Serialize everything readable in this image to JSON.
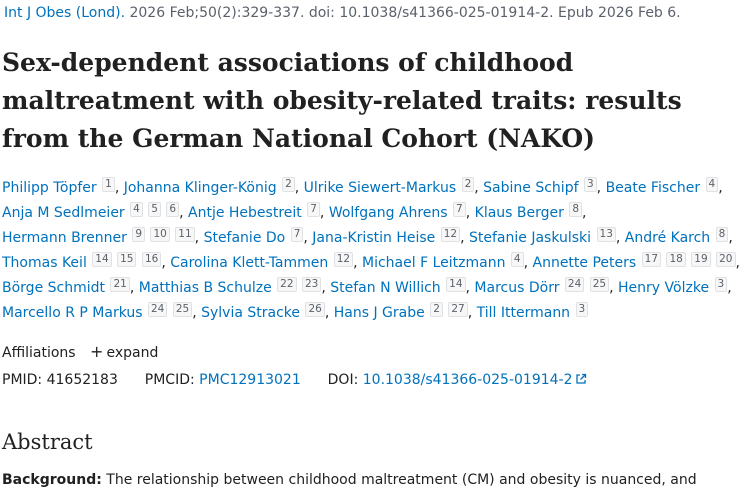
{
  "citation": {
    "journal": "Int J Obes (Lond).",
    "details": " 2026 Feb;50(2):329-337. doi: 10.1038/s41366-025-01914-2. Epub 2026 Feb 6."
  },
  "title": "Sex-dependent associations of childhood maltreatment with obesity-related traits: results from the German National Cohort (NAKO)",
  "authors": [
    {
      "name": "Philipp Töpfer",
      "affs": [
        "1"
      ]
    },
    {
      "name": "Johanna Klinger-König",
      "affs": [
        "2"
      ]
    },
    {
      "name": "Ulrike Siewert-Markus",
      "affs": [
        "2"
      ]
    },
    {
      "name": "Sabine Schipf",
      "affs": [
        "3"
      ]
    },
    {
      "name": "Beate Fischer",
      "affs": [
        "4"
      ]
    },
    {
      "name": "Anja M Sedlmeier",
      "affs": [
        "4",
        "5",
        "6"
      ]
    },
    {
      "name": "Antje Hebestreit",
      "affs": [
        "7"
      ]
    },
    {
      "name": "Wolfgang Ahrens",
      "affs": [
        "7"
      ]
    },
    {
      "name": "Klaus Berger",
      "affs": [
        "8"
      ]
    },
    {
      "name": "Hermann Brenner",
      "affs": [
        "9",
        "10",
        "11"
      ]
    },
    {
      "name": "Stefanie Do",
      "affs": [
        "7"
      ]
    },
    {
      "name": "Jana-Kristin Heise",
      "affs": [
        "12"
      ]
    },
    {
      "name": "Stefanie Jaskulski",
      "affs": [
        "13"
      ]
    },
    {
      "name": "André Karch",
      "affs": [
        "8"
      ]
    },
    {
      "name": "Thomas Keil",
      "affs": [
        "14",
        "15",
        "16"
      ]
    },
    {
      "name": "Carolina Klett-Tammen",
      "affs": [
        "12"
      ]
    },
    {
      "name": "Michael F Leitzmann",
      "affs": [
        "4"
      ]
    },
    {
      "name": "Annette Peters",
      "affs": [
        "17",
        "18",
        "19",
        "20"
      ]
    },
    {
      "name": "Börge Schmidt",
      "affs": [
        "21"
      ]
    },
    {
      "name": "Matthias B Schulze",
      "affs": [
        "22",
        "23"
      ]
    },
    {
      "name": "Stefan N Willich",
      "affs": [
        "14"
      ]
    },
    {
      "name": "Marcus Dörr",
      "affs": [
        "24",
        "25"
      ]
    },
    {
      "name": "Henry Völzke",
      "affs": [
        "3"
      ]
    },
    {
      "name": "Marcello R P Markus",
      "affs": [
        "24",
        "25"
      ]
    },
    {
      "name": "Sylvia Stracke",
      "affs": [
        "26"
      ]
    },
    {
      "name": "Hans J Grabe",
      "affs": [
        "2",
        "27"
      ]
    },
    {
      "name": "Till Ittermann",
      "affs": [
        "3"
      ]
    }
  ],
  "affiliations": {
    "label": "Affiliations",
    "expand_label": "expand"
  },
  "identifiers": {
    "pmid_label": "PMID:",
    "pmid": "41652183",
    "pmcid_label": "PMCID:",
    "pmcid": "PMC12913021",
    "doi_label": "DOI:",
    "doi": "10.1038/s41366-025-01914-2"
  },
  "abstract": {
    "heading": "Abstract",
    "background_label": "Background:",
    "background_text": " The relationship between childhood maltreatment (CM) and obesity is nuanced, and"
  },
  "colors": {
    "link": "#0071bc",
    "text": "#212121",
    "muted": "#5b616b"
  }
}
